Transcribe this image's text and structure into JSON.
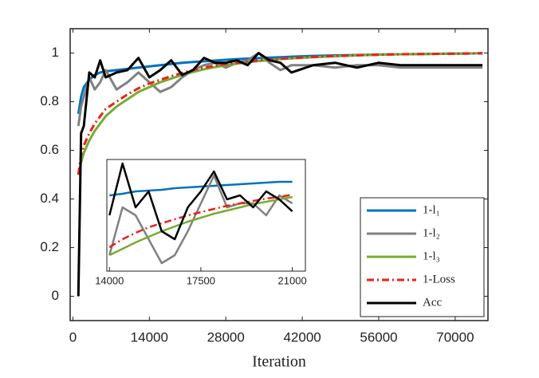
{
  "chart_data": [
    {
      "type": "line",
      "xlabel": "Iteration",
      "x": [
        1000,
        1500,
        2000,
        3000,
        4000,
        5000,
        6000,
        8000,
        10000,
        12000,
        14000,
        16000,
        18000,
        20000,
        22000,
        24000,
        26000,
        28000,
        30000,
        32000,
        34000,
        36000,
        38000,
        40000,
        44000,
        48000,
        52000,
        56000,
        60000,
        64000,
        68000,
        72000,
        75000
      ],
      "series": [
        {
          "name": "1-l₁",
          "color": "#0072bd",
          "values": [
            0.75,
            0.82,
            0.86,
            0.89,
            0.91,
            0.92,
            0.925,
            0.93,
            0.935,
            0.94,
            0.945,
            0.95,
            0.955,
            0.96,
            0.963,
            0.966,
            0.969,
            0.972,
            0.975,
            0.977,
            0.979,
            0.981,
            0.983,
            0.985,
            0.988,
            0.99,
            0.992,
            0.994,
            0.995,
            0.996,
            0.997,
            0.998,
            0.999
          ]
        },
        {
          "name": "1-l₂",
          "color": "#808080",
          "values": [
            0.7,
            0.78,
            0.82,
            0.9,
            0.85,
            0.88,
            0.93,
            0.85,
            0.88,
            0.92,
            0.88,
            0.84,
            0.86,
            0.9,
            0.93,
            0.95,
            0.96,
            0.94,
            0.96,
            0.97,
            1.0,
            0.96,
            0.93,
            0.95,
            0.95,
            0.94,
            0.95,
            0.95,
            0.94,
            0.94,
            0.94,
            0.94,
            0.94
          ]
        },
        {
          "name": "1-l₃",
          "color": "#77ac30",
          "values": [
            0.5,
            0.55,
            0.59,
            0.64,
            0.68,
            0.71,
            0.74,
            0.78,
            0.81,
            0.84,
            0.86,
            0.88,
            0.895,
            0.91,
            0.922,
            0.933,
            0.942,
            0.95,
            0.956,
            0.962,
            0.967,
            0.971,
            0.975,
            0.978,
            0.983,
            0.987,
            0.99,
            0.993,
            0.995,
            0.996,
            0.997,
            0.998,
            0.999
          ]
        },
        {
          "name": "1-Loss",
          "color": "#e8221a",
          "linestyle": "dashdot",
          "values": [
            0.5,
            0.58,
            0.62,
            0.67,
            0.71,
            0.74,
            0.77,
            0.8,
            0.83,
            0.855,
            0.875,
            0.89,
            0.905,
            0.918,
            0.93,
            0.94,
            0.948,
            0.955,
            0.96,
            0.965,
            0.97,
            0.973,
            0.976,
            0.979,
            0.984,
            0.988,
            0.991,
            0.993,
            0.995,
            0.996,
            0.997,
            0.998,
            0.999
          ]
        },
        {
          "name": "Acc",
          "color": "#000000",
          "values": [
            0,
            0.67,
            0.7,
            0.92,
            0.9,
            0.97,
            0.9,
            0.92,
            0.93,
            0.98,
            0.9,
            0.93,
            0.97,
            0.91,
            0.93,
            0.98,
            0.96,
            0.96,
            0.97,
            0.95,
            1.0,
            0.97,
            0.96,
            0.92,
            0.95,
            0.96,
            0.94,
            0.96,
            0.95,
            0.95,
            0.95,
            0.95,
            0.95
          ]
        }
      ],
      "xlim": [
        -500,
        76000
      ],
      "xticks": [
        0,
        14000,
        28000,
        42000,
        56000,
        70000
      ],
      "ylim": [
        -0.1,
        1.1
      ],
      "yticks": [
        0,
        0.2,
        0.4,
        0.6,
        0.8,
        1
      ],
      "legend": "lower right"
    },
    {
      "type": "line",
      "x": [
        14000,
        14500,
        15000,
        15500,
        16000,
        16500,
        17000,
        17500,
        18000,
        18500,
        19000,
        19500,
        20000,
        20500,
        21000
      ],
      "series": [
        {
          "color": "#0072bd",
          "values": [
            0.945,
            0.947,
            0.95,
            0.951,
            0.952,
            0.954,
            0.955,
            0.956,
            0.957,
            0.958,
            0.959,
            0.96,
            0.961,
            0.962,
            0.962
          ]
        },
        {
          "color": "#808080",
          "values": [
            0.87,
            0.93,
            0.92,
            0.89,
            0.86,
            0.87,
            0.9,
            0.935,
            0.97,
            0.93,
            0.935,
            0.935,
            0.92,
            0.945,
            0.935
          ]
        },
        {
          "color": "#77ac30",
          "values": [
            0.87,
            0.878,
            0.886,
            0.893,
            0.9,
            0.906,
            0.912,
            0.917,
            0.922,
            0.926,
            0.93,
            0.934,
            0.937,
            0.94,
            0.943
          ]
        },
        {
          "color": "#e8221a",
          "linestyle": "dashdot",
          "values": [
            0.88,
            0.89,
            0.898,
            0.905,
            0.91,
            0.915,
            0.92,
            0.924,
            0.928,
            0.932,
            0.935,
            0.938,
            0.941,
            0.943,
            0.946
          ]
        },
        {
          "color": "#000000",
          "values": [
            0.92,
            0.985,
            0.93,
            0.95,
            0.9,
            0.89,
            0.93,
            0.95,
            0.975,
            0.94,
            0.945,
            0.93,
            0.95,
            0.94,
            0.925
          ]
        }
      ],
      "xlim": [
        13900,
        21500
      ],
      "xticks": [
        14000,
        17500,
        21000
      ],
      "ylim": [
        0.85,
        0.99
      ]
    }
  ]
}
